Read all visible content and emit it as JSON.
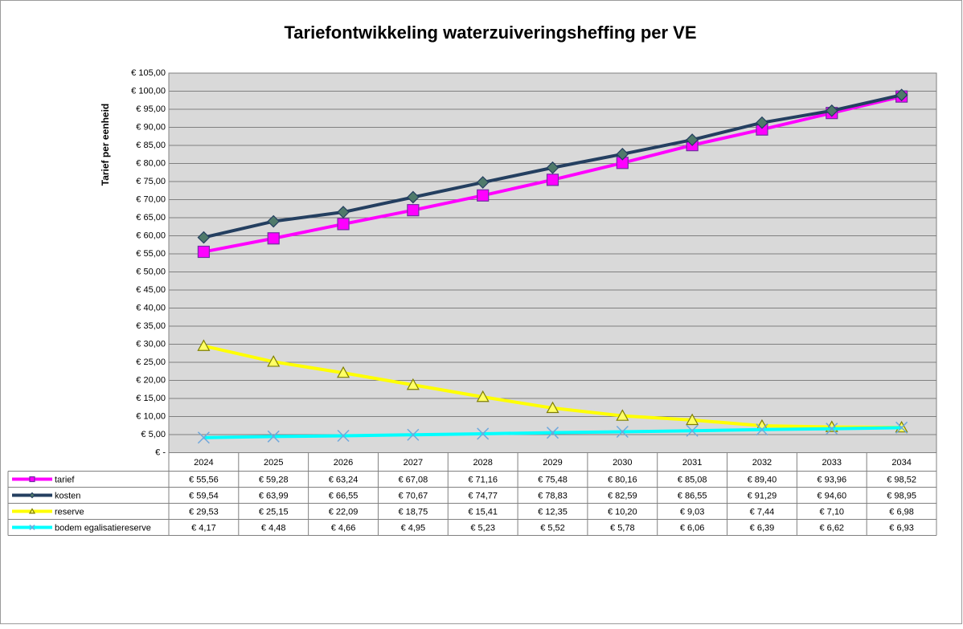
{
  "chart_data": {
    "type": "line",
    "title": "Tariefontwikkeling waterzuiveringsheffing per VE",
    "y_label": "Tarief per eenheid",
    "categories": [
      "2024",
      "2025",
      "2026",
      "2027",
      "2028",
      "2029",
      "2030",
      "2031",
      "2032",
      "2033",
      "2034"
    ],
    "series": [
      {
        "name": "tarief",
        "color": "#ff00ff",
        "marker": "square",
        "marker_fill": "#ff00ff",
        "marker_stroke": "#7030a0",
        "values": [
          55.56,
          59.28,
          63.24,
          67.08,
          71.16,
          75.48,
          80.16,
          85.08,
          89.4,
          93.96,
          98.52
        ],
        "value_labels": [
          "€ 55,56",
          "€ 59,28",
          "€ 63,24",
          "€ 67,08",
          "€ 71,16",
          "€ 75,48",
          "€ 80,16",
          "€ 85,08",
          "€ 89,40",
          "€ 93,96",
          "€ 98,52"
        ]
      },
      {
        "name": "kosten",
        "color": "#243f60",
        "marker": "diamond",
        "marker_fill": "#4f7a6a",
        "marker_stroke": "#243f60",
        "values": [
          59.54,
          63.99,
          66.55,
          70.67,
          74.77,
          78.83,
          82.59,
          86.55,
          91.29,
          94.6,
          98.95
        ],
        "value_labels": [
          "€ 59,54",
          "€ 63,99",
          "€ 66,55",
          "€ 70,67",
          "€ 74,77",
          "€ 78,83",
          "€ 82,59",
          "€ 86,55",
          "€ 91,29",
          "€ 94,60",
          "€ 98,95"
        ]
      },
      {
        "name": "reserve",
        "color": "#ffff00",
        "marker": "triangle",
        "marker_fill": "#ffff66",
        "marker_stroke": "#7f7f00",
        "values": [
          29.53,
          25.15,
          22.09,
          18.75,
          15.41,
          12.35,
          10.2,
          9.03,
          7.44,
          7.1,
          6.98
        ],
        "value_labels": [
          "€ 29,53",
          "€ 25,15",
          "€ 22,09",
          "€ 18,75",
          "€ 15,41",
          "€ 12,35",
          "€ 10,20",
          "€ 9,03",
          "€ 7,44",
          "€ 7,10",
          "€ 6,98"
        ]
      },
      {
        "name": "bodem egalisatiereserve",
        "color": "#00ffff",
        "marker": "x",
        "marker_fill": "none",
        "marker_stroke": "#6fa8dc",
        "values": [
          4.17,
          4.48,
          4.66,
          4.95,
          5.23,
          5.52,
          5.78,
          6.06,
          6.39,
          6.62,
          6.93
        ],
        "value_labels": [
          "€ 4,17",
          "€ 4,48",
          "€ 4,66",
          "€ 4,95",
          "€ 5,23",
          "€ 5,52",
          "€ 5,78",
          "€ 6,06",
          "€ 6,39",
          "€ 6,62",
          "€ 6,93"
        ]
      }
    ],
    "ylim": [
      0,
      105
    ],
    "yticks": [
      {
        "value": 0,
        "label": "€ -"
      },
      {
        "value": 5,
        "label": "€ 5,00"
      },
      {
        "value": 10,
        "label": "€ 10,00"
      },
      {
        "value": 15,
        "label": "€ 15,00"
      },
      {
        "value": 20,
        "label": "€ 20,00"
      },
      {
        "value": 25,
        "label": "€ 25,00"
      },
      {
        "value": 30,
        "label": "€ 30,00"
      },
      {
        "value": 35,
        "label": "€ 35,00"
      },
      {
        "value": 40,
        "label": "€ 40,00"
      },
      {
        "value": 45,
        "label": "€ 45,00"
      },
      {
        "value": 50,
        "label": "€ 50,00"
      },
      {
        "value": 55,
        "label": "€ 55,00"
      },
      {
        "value": 60,
        "label": "€ 60,00"
      },
      {
        "value": 65,
        "label": "€ 65,00"
      },
      {
        "value": 70,
        "label": "€ 70,00"
      },
      {
        "value": 75,
        "label": "€ 75,00"
      },
      {
        "value": 80,
        "label": "€ 80,00"
      },
      {
        "value": 85,
        "label": "€ 85,00"
      },
      {
        "value": 90,
        "label": "€ 90,00"
      },
      {
        "value": 95,
        "label": "€ 95,00"
      },
      {
        "value": 100,
        "label": "€ 100,00"
      },
      {
        "value": 105,
        "label": "€ 105,00"
      }
    ],
    "grid": true
  }
}
